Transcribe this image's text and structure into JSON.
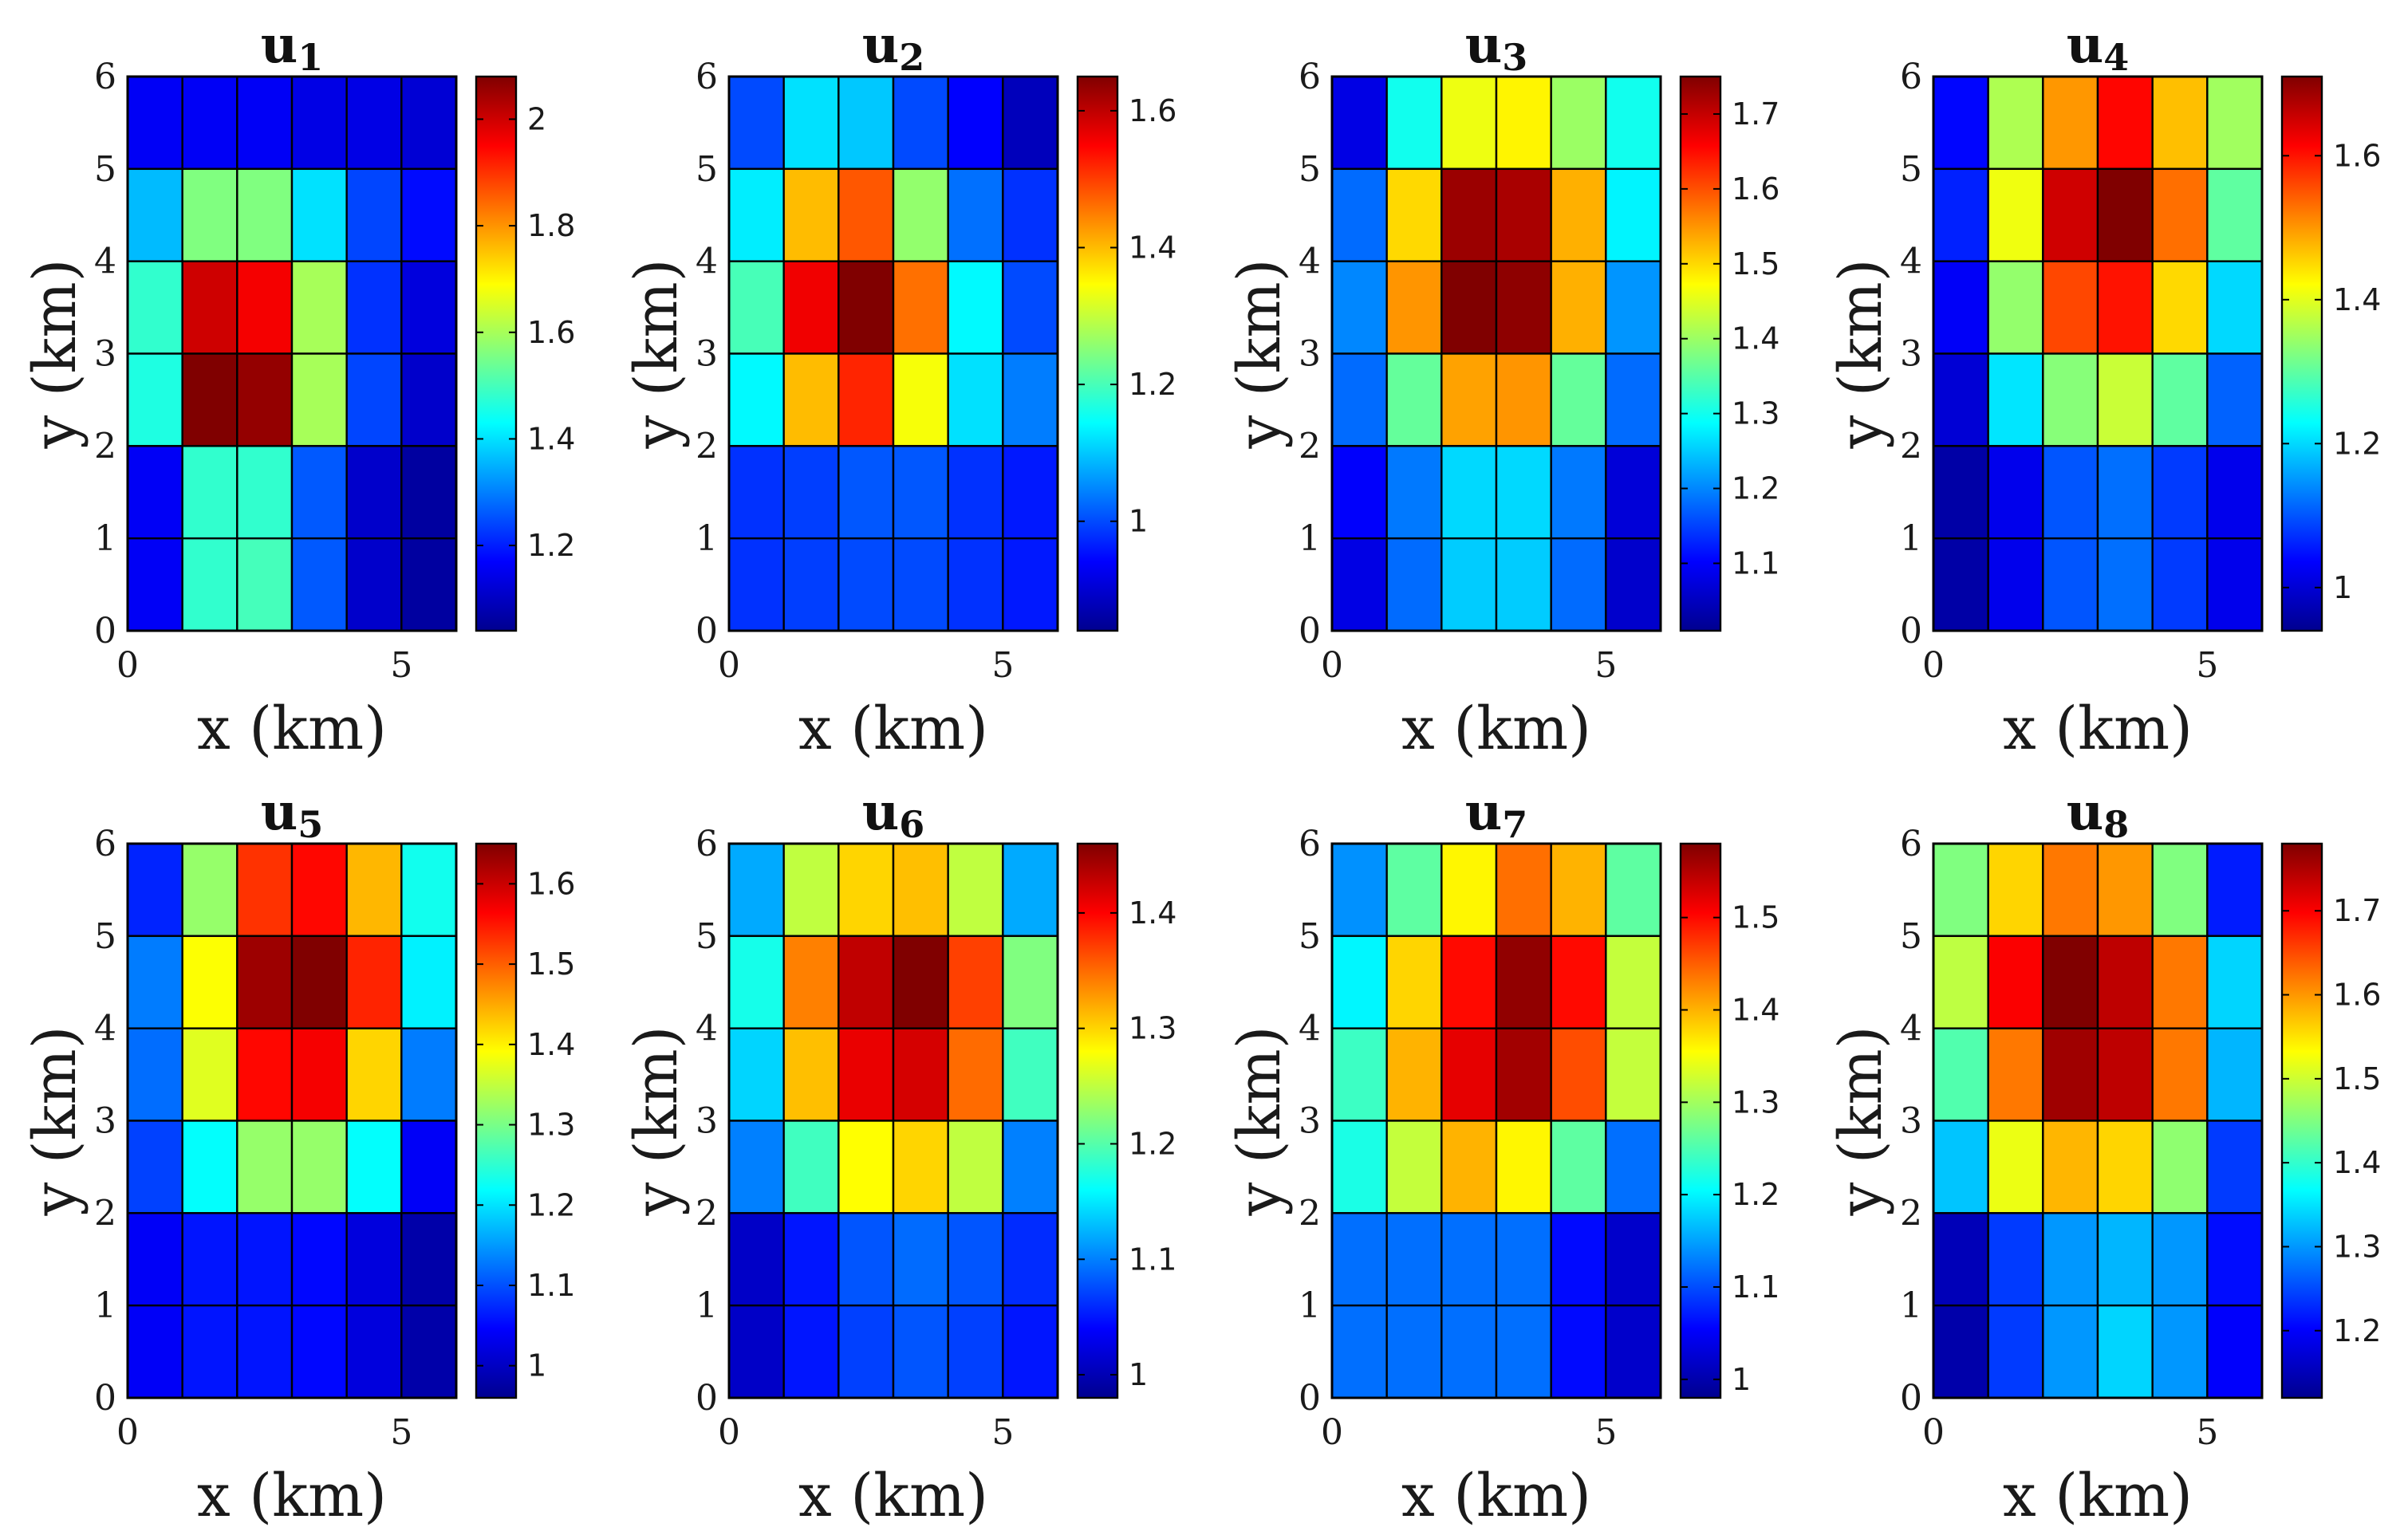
{
  "figure": {
    "colormap": "jet",
    "colormap_stops": [
      "#00008f",
      "#0000ff",
      "#0080ff",
      "#00ffff",
      "#80ff80",
      "#ffff00",
      "#ff8000",
      "#ff0000",
      "#800000"
    ],
    "axes_color": "#000000"
  },
  "chart_data": [
    {
      "type": "heatmap",
      "title": "u",
      "subscript": "1",
      "xlabel": "x (km)",
      "ylabel": "y (km)",
      "xlim": [
        0,
        6
      ],
      "ylim": [
        0,
        6
      ],
      "xticks": [
        "0",
        "5"
      ],
      "yticks": [
        "0",
        "1",
        "2",
        "3",
        "4",
        "5",
        "6"
      ],
      "colorbar": {
        "min": 1.04,
        "max": 2.08,
        "ticks": [
          1.2,
          1.4,
          1.6,
          1.8,
          2
        ],
        "tick_labels": [
          "1.2",
          "1.4",
          "1.6",
          "1.8",
          "2"
        ]
      },
      "grid_rows_top_to_bottom": [
        [
          1.16,
          1.16,
          1.16,
          1.14,
          1.14,
          1.12
        ],
        [
          1.36,
          1.56,
          1.56,
          1.4,
          1.24,
          1.18
        ],
        [
          1.48,
          2.0,
          1.96,
          1.6,
          1.22,
          1.13
        ],
        [
          1.46,
          2.08,
          2.06,
          1.6,
          1.24,
          1.11
        ],
        [
          1.16,
          1.48,
          1.48,
          1.26,
          1.11,
          1.06
        ],
        [
          1.16,
          1.48,
          1.5,
          1.26,
          1.11,
          1.06
        ]
      ]
    },
    {
      "type": "heatmap",
      "title": "u",
      "subscript": "2",
      "xlabel": "x (km)",
      "ylabel": "y (km)",
      "xlim": [
        0,
        6
      ],
      "ylim": [
        0,
        6
      ],
      "xticks": [
        "0",
        "5"
      ],
      "yticks": [
        "0",
        "1",
        "2",
        "3",
        "4",
        "5",
        "6"
      ],
      "colorbar": {
        "min": 0.84,
        "max": 1.65,
        "ticks": [
          1,
          1.2,
          1.4,
          1.6
        ],
        "tick_labels": [
          "1",
          "1.2",
          "1.4",
          "1.6"
        ]
      },
      "grid_rows_top_to_bottom": [
        [
          1.0,
          1.12,
          1.1,
          1.0,
          0.94,
          0.88
        ],
        [
          1.13,
          1.4,
          1.48,
          1.26,
          1.03,
          0.98
        ],
        [
          1.2,
          1.56,
          1.65,
          1.46,
          1.14,
          1.0
        ],
        [
          1.14,
          1.4,
          1.52,
          1.34,
          1.12,
          1.04
        ],
        [
          0.98,
          0.99,
          1.01,
          1.01,
          0.98,
          0.96
        ],
        [
          0.98,
          0.99,
          1.0,
          1.0,
          0.98,
          0.96
        ]
      ]
    },
    {
      "type": "heatmap",
      "title": "u",
      "subscript": "3",
      "xlabel": "x (km)",
      "ylabel": "y (km)",
      "xlim": [
        0,
        6
      ],
      "ylim": [
        0,
        6
      ],
      "xticks": [
        "0",
        "5"
      ],
      "yticks": [
        "0",
        "1",
        "2",
        "3",
        "4",
        "5",
        "6"
      ],
      "colorbar": {
        "min": 1.01,
        "max": 1.75,
        "ticks": [
          1.1,
          1.2,
          1.3,
          1.4,
          1.5,
          1.6,
          1.7
        ],
        "tick_labels": [
          "1.1",
          "1.2",
          "1.3",
          "1.4",
          "1.5",
          "1.6",
          "1.7"
        ]
      },
      "grid_rows_top_to_bottom": [
        [
          1.08,
          1.3,
          1.46,
          1.48,
          1.4,
          1.3
        ],
        [
          1.18,
          1.5,
          1.73,
          1.72,
          1.53,
          1.28
        ],
        [
          1.2,
          1.55,
          1.75,
          1.74,
          1.53,
          1.21
        ],
        [
          1.18,
          1.36,
          1.54,
          1.55,
          1.36,
          1.18
        ],
        [
          1.1,
          1.19,
          1.26,
          1.26,
          1.19,
          1.07
        ],
        [
          1.08,
          1.18,
          1.25,
          1.25,
          1.18,
          1.06
        ]
      ]
    },
    {
      "type": "heatmap",
      "title": "u",
      "subscript": "4",
      "xlabel": "x (km)",
      "ylabel": "y (km)",
      "xlim": [
        0,
        6
      ],
      "ylim": [
        0,
        6
      ],
      "xticks": [
        "0",
        "5"
      ],
      "yticks": [
        "0",
        "1",
        "2",
        "3",
        "4",
        "5",
        "6"
      ],
      "colorbar": {
        "min": 0.94,
        "max": 1.71,
        "ticks": [
          1,
          1.2,
          1.4,
          1.6
        ],
        "tick_labels": [
          "1",
          "1.2",
          "1.4",
          "1.6"
        ]
      },
      "grid_rows_top_to_bottom": [
        [
          1.04,
          1.36,
          1.5,
          1.61,
          1.47,
          1.35
        ],
        [
          1.06,
          1.41,
          1.65,
          1.71,
          1.53,
          1.3
        ],
        [
          1.03,
          1.34,
          1.56,
          1.6,
          1.45,
          1.2
        ],
        [
          1.0,
          1.21,
          1.33,
          1.38,
          1.3,
          1.11
        ],
        [
          0.96,
          1.02,
          1.1,
          1.12,
          1.08,
          1.02
        ],
        [
          0.96,
          1.02,
          1.1,
          1.12,
          1.08,
          1.02
        ]
      ]
    },
    {
      "type": "heatmap",
      "title": "u",
      "subscript": "5",
      "xlabel": "x (km)",
      "ylabel": "y (km)",
      "xlim": [
        0,
        6
      ],
      "ylim": [
        0,
        6
      ],
      "xticks": [
        "0",
        "5"
      ],
      "yticks": [
        "0",
        "1",
        "2",
        "3",
        "4",
        "5",
        "6"
      ],
      "colorbar": {
        "min": 0.96,
        "max": 1.65,
        "ticks": [
          1,
          1.1,
          1.2,
          1.3,
          1.4,
          1.5,
          1.6
        ],
        "tick_labels": [
          "1",
          "1.1",
          "1.2",
          "1.3",
          "1.4",
          "1.5",
          "1.6"
        ]
      },
      "grid_rows_top_to_bottom": [
        [
          1.07,
          1.32,
          1.53,
          1.56,
          1.44,
          1.23
        ],
        [
          1.13,
          1.39,
          1.63,
          1.65,
          1.54,
          1.21
        ],
        [
          1.12,
          1.37,
          1.56,
          1.57,
          1.42,
          1.13
        ],
        [
          1.09,
          1.22,
          1.32,
          1.32,
          1.22,
          1.04
        ],
        [
          1.04,
          1.06,
          1.06,
          1.05,
          1.02,
          0.98
        ],
        [
          1.04,
          1.06,
          1.06,
          1.05,
          1.02,
          0.98
        ]
      ]
    },
    {
      "type": "heatmap",
      "title": "u",
      "subscript": "6",
      "xlabel": "x (km)",
      "ylabel": "y (km)",
      "xlim": [
        0,
        6
      ],
      "ylim": [
        0,
        6
      ],
      "xticks": [
        "0",
        "5"
      ],
      "yticks": [
        "0",
        "1",
        "2",
        "3",
        "4",
        "5",
        "6"
      ],
      "colorbar": {
        "min": 0.98,
        "max": 1.46,
        "ticks": [
          1,
          1.1,
          1.2,
          1.3,
          1.4
        ],
        "tick_labels": [
          "1",
          "1.1",
          "1.2",
          "1.3",
          "1.4"
        ]
      },
      "grid_rows_top_to_bottom": [
        [
          1.12,
          1.25,
          1.3,
          1.31,
          1.25,
          1.12
        ],
        [
          1.17,
          1.34,
          1.43,
          1.46,
          1.37,
          1.22
        ],
        [
          1.14,
          1.31,
          1.41,
          1.42,
          1.35,
          1.19
        ],
        [
          1.1,
          1.19,
          1.28,
          1.3,
          1.25,
          1.1
        ],
        [
          1.01,
          1.05,
          1.08,
          1.09,
          1.08,
          1.06
        ],
        [
          1.01,
          1.05,
          1.07,
          1.08,
          1.07,
          1.05
        ]
      ]
    },
    {
      "type": "heatmap",
      "title": "u",
      "subscript": "7",
      "xlabel": "x (km)",
      "ylabel": "y (km)",
      "xlim": [
        0,
        6
      ],
      "ylim": [
        0,
        6
      ],
      "xticks": [
        "0",
        "5"
      ],
      "yticks": [
        "0",
        "1",
        "2",
        "3",
        "4",
        "5",
        "6"
      ],
      "colorbar": {
        "min": 0.98,
        "max": 1.58,
        "ticks": [
          1,
          1.1,
          1.2,
          1.3,
          1.4,
          1.5
        ],
        "tick_labels": [
          "1",
          "1.1",
          "1.2",
          "1.3",
          "1.4",
          "1.5"
        ]
      },
      "grid_rows_top_to_bottom": [
        [
          1.14,
          1.26,
          1.36,
          1.44,
          1.4,
          1.26
        ],
        [
          1.2,
          1.38,
          1.5,
          1.57,
          1.5,
          1.32
        ],
        [
          1.24,
          1.4,
          1.52,
          1.56,
          1.46,
          1.32
        ],
        [
          1.22,
          1.32,
          1.4,
          1.36,
          1.26,
          1.12
        ],
        [
          1.12,
          1.12,
          1.12,
          1.12,
          1.06,
          1.02
        ],
        [
          1.12,
          1.12,
          1.12,
          1.12,
          1.06,
          1.02
        ]
      ]
    },
    {
      "type": "heatmap",
      "title": "u",
      "subscript": "8",
      "xlabel": "x (km)",
      "ylabel": "y (km)",
      "xlim": [
        0,
        6
      ],
      "ylim": [
        0,
        6
      ],
      "xticks": [
        "0",
        "5"
      ],
      "yticks": [
        "0",
        "1",
        "2",
        "3",
        "4",
        "5",
        "6"
      ],
      "colorbar": {
        "min": 1.12,
        "max": 1.78,
        "ticks": [
          1.2,
          1.3,
          1.4,
          1.5,
          1.6,
          1.7
        ],
        "tick_labels": [
          "1.2",
          "1.3",
          "1.4",
          "1.5",
          "1.6",
          "1.7"
        ]
      },
      "grid_rows_top_to_bottom": [
        [
          1.45,
          1.56,
          1.62,
          1.6,
          1.45,
          1.22
        ],
        [
          1.49,
          1.7,
          1.78,
          1.74,
          1.62,
          1.34
        ],
        [
          1.42,
          1.62,
          1.76,
          1.74,
          1.62,
          1.32
        ],
        [
          1.33,
          1.52,
          1.58,
          1.56,
          1.46,
          1.24
        ],
        [
          1.15,
          1.24,
          1.3,
          1.32,
          1.3,
          1.21
        ],
        [
          1.14,
          1.24,
          1.3,
          1.34,
          1.3,
          1.2
        ]
      ]
    }
  ]
}
